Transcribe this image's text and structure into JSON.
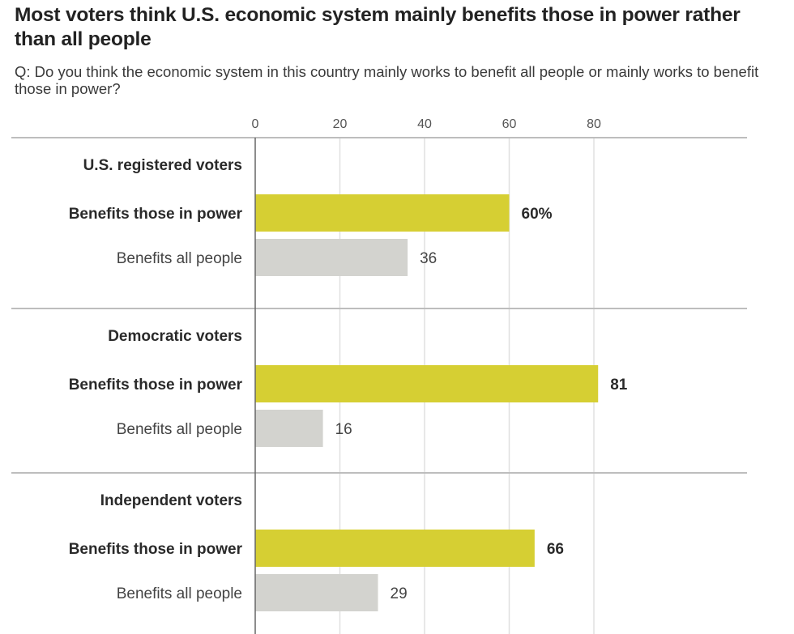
{
  "chart_data": {
    "type": "bar",
    "orientation": "horizontal",
    "title": "Most voters think U.S. economic system mainly benefits those in power rather than all people",
    "subtitle": "Q: Do you think the economic system in this country mainly works to benefit all people or mainly works to benefit those in power?",
    "xlabel": "",
    "ylabel": "",
    "xlim": [
      0,
      80
    ],
    "x_ticks": [
      "0",
      "20",
      "40",
      "60",
      "80"
    ],
    "grid": true,
    "value_suffix_first": "%",
    "colors": {
      "benefits_those_in_power": "#d6cf33",
      "benefits_all_people": "#d3d3cf",
      "gridline": "#e0e0e0",
      "axis": "#666666",
      "separator": "#bdbdbd"
    },
    "series": [
      {
        "name": "Benefits those in power",
        "emphasis": true
      },
      {
        "name": "Benefits all people",
        "emphasis": false
      }
    ],
    "groups": [
      {
        "label": "U.S. registered voters",
        "bars": [
          {
            "category": "Benefits those in power",
            "value": 60,
            "label": "60%"
          },
          {
            "category": "Benefits all people",
            "value": 36,
            "label": "36"
          }
        ]
      },
      {
        "label": "Democratic voters",
        "bars": [
          {
            "category": "Benefits those in power",
            "value": 81,
            "label": "81"
          },
          {
            "category": "Benefits all people",
            "value": 16,
            "label": "16"
          }
        ]
      },
      {
        "label": "Independent voters",
        "bars": [
          {
            "category": "Benefits those in power",
            "value": 66,
            "label": "66"
          },
          {
            "category": "Benefits all people",
            "value": 29,
            "label": "29"
          }
        ]
      }
    ]
  }
}
